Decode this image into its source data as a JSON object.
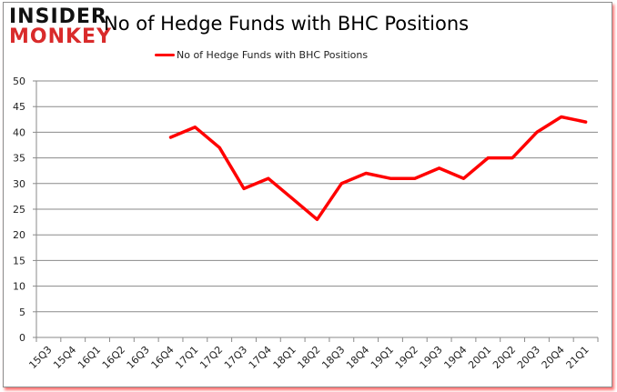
{
  "logo": {
    "line1": "INSIDER",
    "line2": "MONKEY"
  },
  "chart_data": {
    "type": "line",
    "title": "No of Hedge Funds with BHC Positions",
    "xlabel": "",
    "ylabel": "",
    "ylim": [
      0,
      50
    ],
    "yticks": [
      0,
      5,
      10,
      15,
      20,
      25,
      30,
      35,
      40,
      45,
      50
    ],
    "grid": true,
    "legend_position": "top",
    "categories": [
      "15Q3",
      "15Q4",
      "16Q1",
      "16Q2",
      "16Q3",
      "16Q4",
      "17Q1",
      "17Q2",
      "17Q3",
      "17Q4",
      "18Q1",
      "18Q2",
      "18Q3",
      "18Q4",
      "19Q1",
      "19Q2",
      "19Q3",
      "19Q4",
      "20Q1",
      "20Q2",
      "20Q3",
      "20Q4",
      "21Q1"
    ],
    "series": [
      {
        "name": "No of Hedge Funds with BHC Positions",
        "color": "#ff0000",
        "values": [
          null,
          null,
          null,
          null,
          null,
          39,
          41,
          37,
          29,
          31,
          27,
          23,
          30,
          32,
          31,
          31,
          33,
          31,
          35,
          35,
          40,
          43,
          42
        ]
      }
    ]
  }
}
